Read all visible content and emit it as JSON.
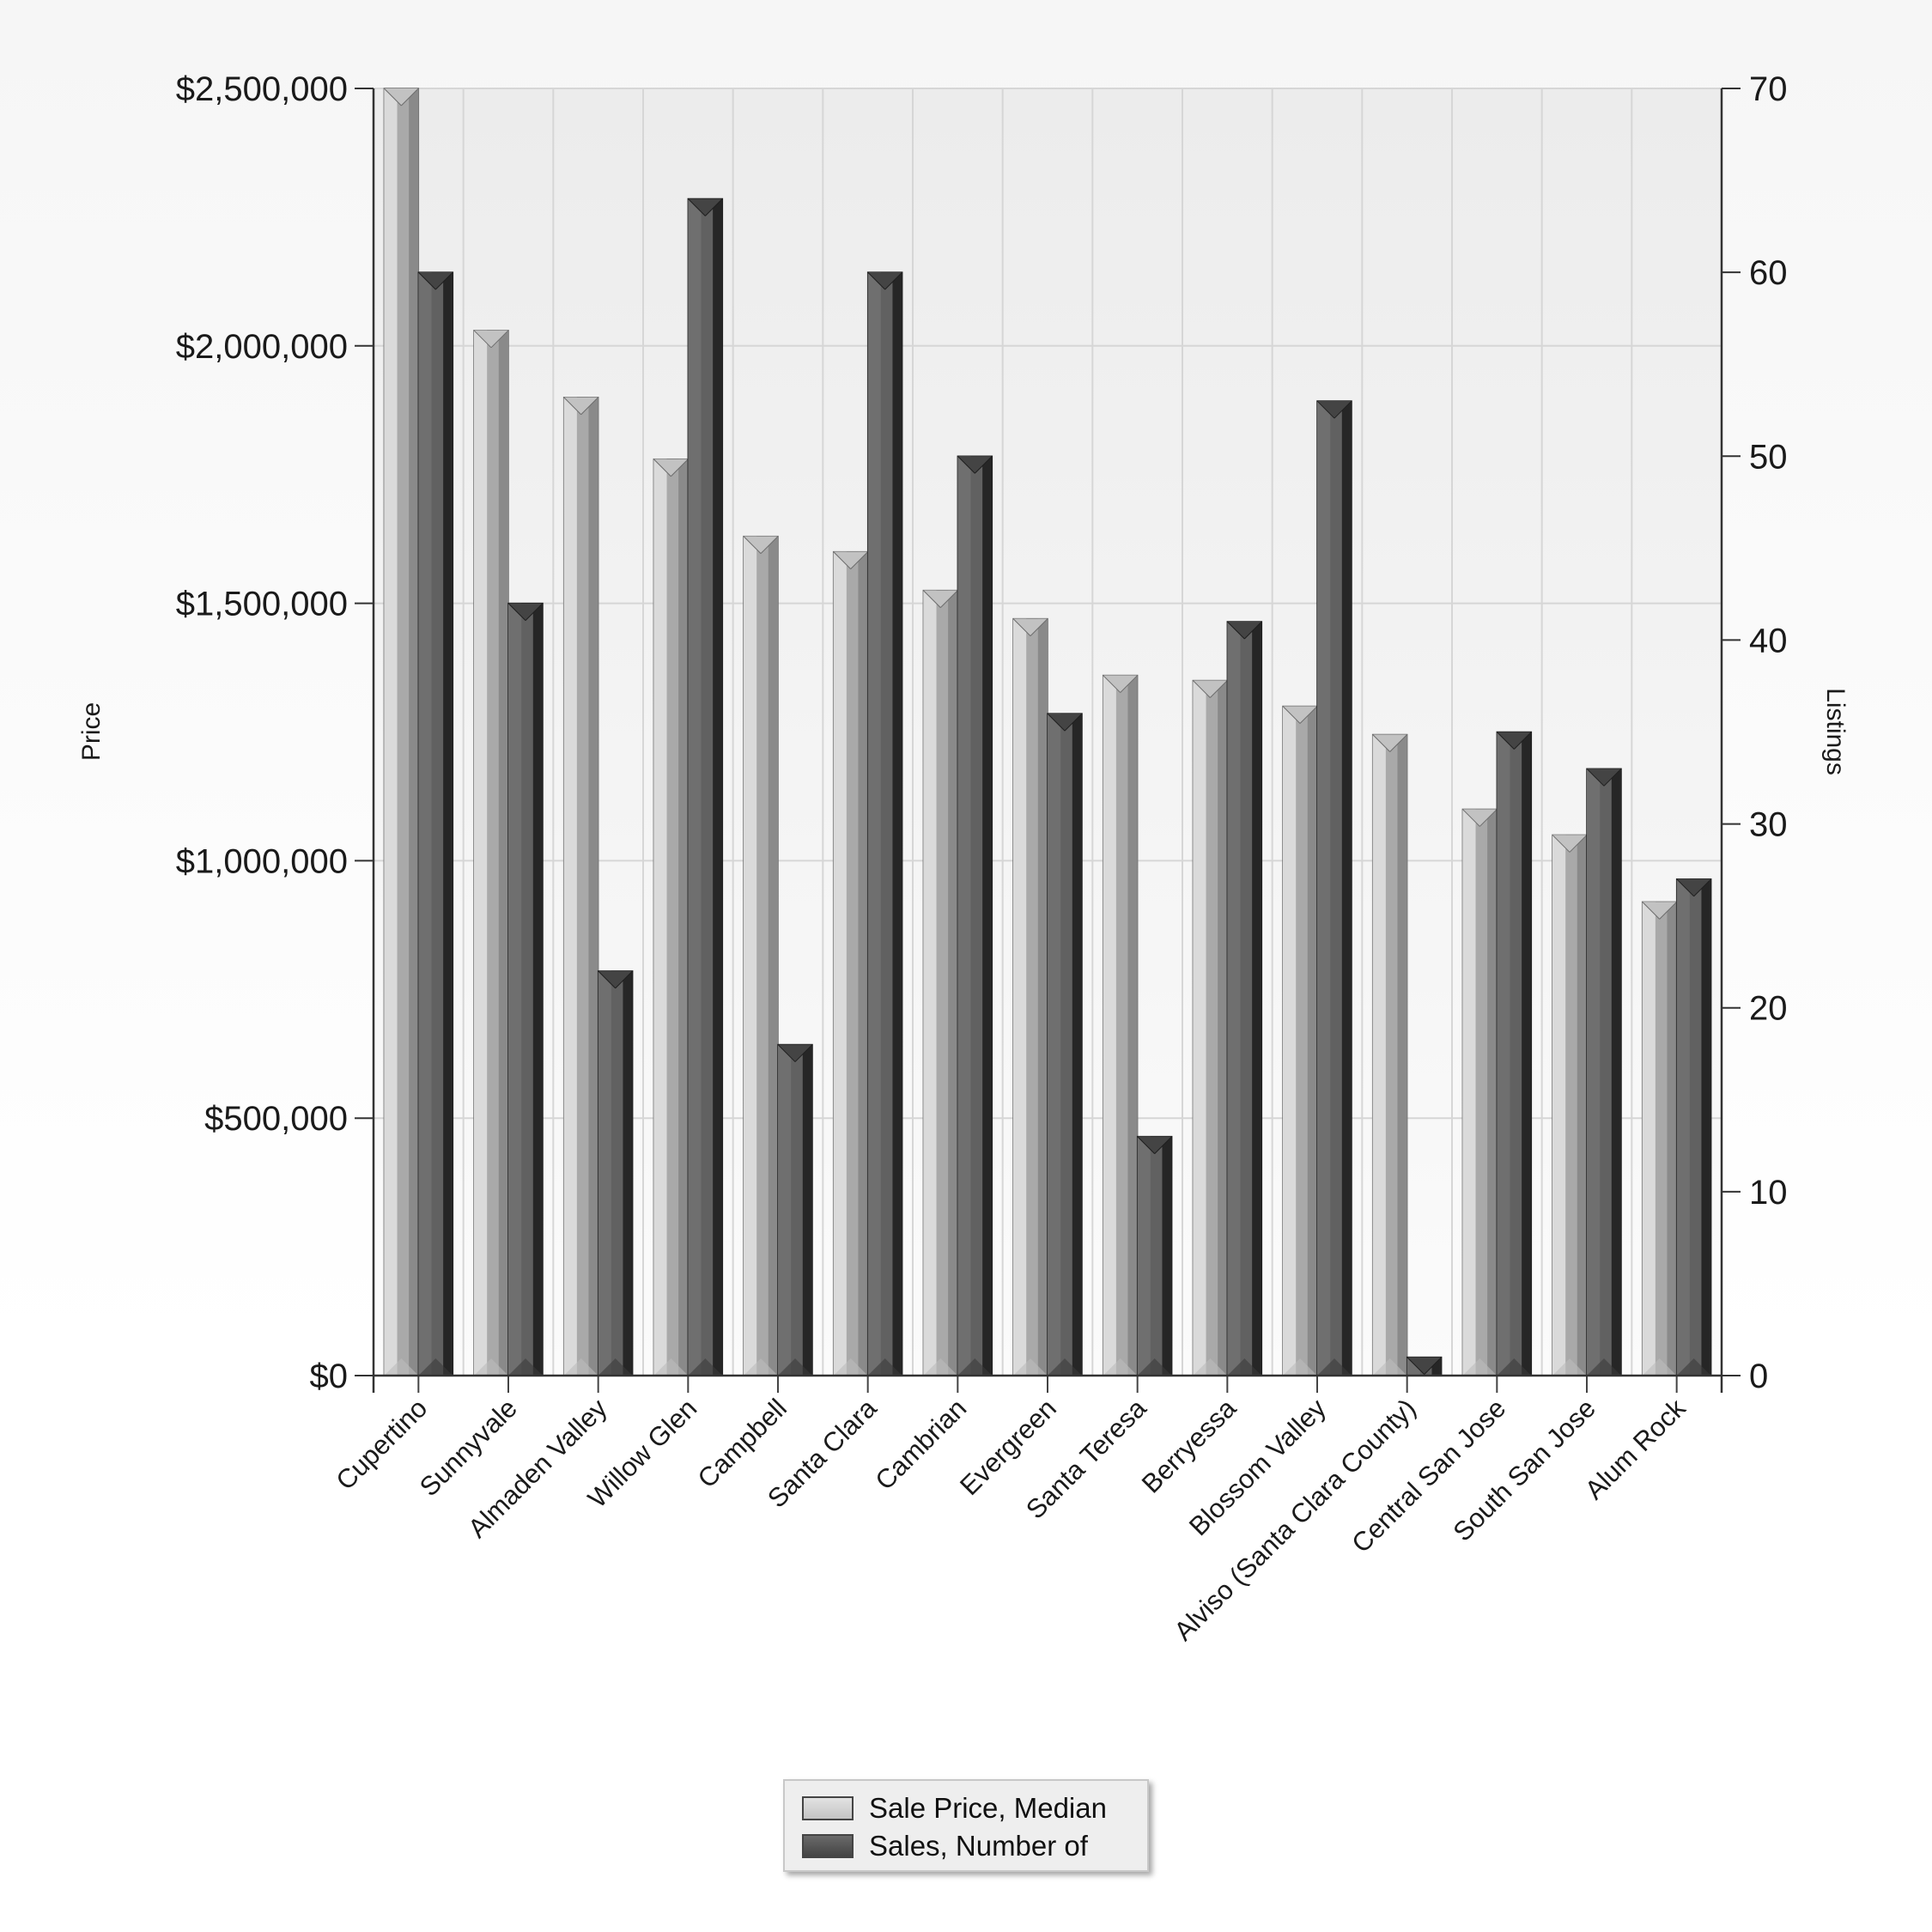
{
  "chart_data": {
    "type": "bar",
    "title": "",
    "xlabel": "",
    "ylabel": "Price",
    "y2label": "Listings",
    "ylim": [
      0,
      2500000
    ],
    "y2lim": [
      0,
      70
    ],
    "y_ticks": [
      "$0",
      "$500,000",
      "$1,000,000",
      "$1,500,000",
      "$2,000,000",
      "$2,500,000"
    ],
    "y_tick_values": [
      0,
      500000,
      1000000,
      1500000,
      2000000,
      2500000
    ],
    "y2_ticks": [
      "0",
      "10",
      "20",
      "30",
      "40",
      "50",
      "60",
      "70"
    ],
    "y2_tick_values": [
      0,
      10,
      20,
      30,
      40,
      50,
      60,
      70
    ],
    "grid": true,
    "legend_position": "bottom-center",
    "categories": [
      "Cupertino",
      "Sunnyvale",
      "Almaden Valley",
      "Willow Glen",
      "Campbell",
      "Santa Clara",
      "Cambrian",
      "Evergreen",
      "Santa Teresa",
      "Berryessa",
      "Blossom Valley",
      "Alviso (Santa Clara County)",
      "Central San Jose",
      "South San Jose",
      "Alum Rock"
    ],
    "series": [
      {
        "name": "Sale Price, Median",
        "axis": "left",
        "color": "#d4d4d4",
        "values": [
          2500000,
          2030000,
          1900000,
          1780000,
          1630000,
          1600000,
          1525000,
          1470000,
          1360000,
          1350000,
          1300000,
          1245000,
          1100000,
          1050000,
          920000
        ]
      },
      {
        "name": "Sales, Number of",
        "axis": "right",
        "color": "#5a5a5a",
        "values": [
          60,
          42,
          22,
          64,
          18,
          60,
          50,
          36,
          13,
          41,
          53,
          1,
          35,
          33,
          27
        ]
      }
    ]
  }
}
